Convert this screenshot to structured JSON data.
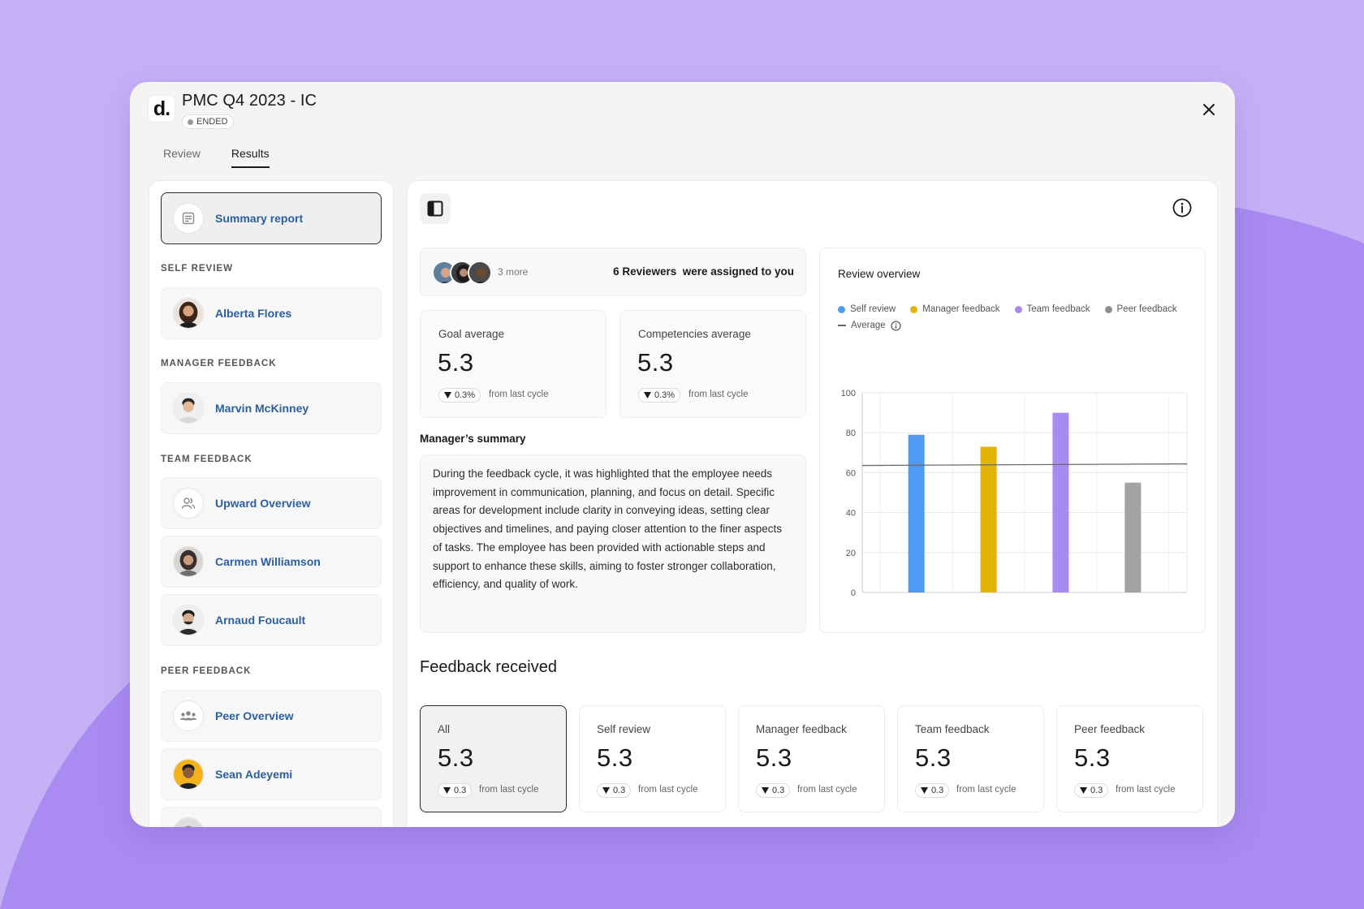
{
  "app": {
    "logo_text": "d.",
    "title": "PMC Q4 2023 - IC",
    "status": "ENDED"
  },
  "tabs": [
    {
      "label": "Review",
      "active": false
    },
    {
      "label": "Results",
      "active": true
    }
  ],
  "sidebar": {
    "summary_label": "Summary report",
    "sections": {
      "self_review": "SELF REVIEW",
      "manager_feedback": "MANAGER FEEDBACK",
      "team_feedback": "TEAM FEEDBACK",
      "peer_feedback": "PEER FEEDBACK"
    },
    "items": {
      "alberta": "Alberta Flores",
      "marvin": "Marvin McKinney",
      "upward": "Upward Overview",
      "carmen": "Carmen Williamson",
      "arnaud": "Arnaud Foucault",
      "peer": "Peer Overview",
      "sean": "Sean Adeyemi"
    }
  },
  "reviewers": {
    "more": "3 more",
    "text": "6 Reviewers  were assigned to you"
  },
  "stats": {
    "goal": {
      "label": "Goal average",
      "value": "5.3",
      "delta": "0.3%",
      "caption": "from last cycle"
    },
    "competencies": {
      "label": "Competencies average",
      "value": "5.3",
      "delta": "0.3%",
      "caption": "from last cycle"
    }
  },
  "manager_summary": {
    "title": "Manager’s summary",
    "body": "During the feedback cycle, it was highlighted that the employee needs improvement in communication, planning, and focus on detail. Specific areas for development include clarity in conveying ideas, setting clear objectives and timelines, and paying closer attention to the finer aspects of tasks. The employee has been provided with actionable steps and support to enhance these skills, aiming to foster stronger collaboration, efficiency, and quality of work."
  },
  "feedback_received": {
    "title": "Feedback received",
    "cards": [
      {
        "label": "All",
        "value": "5.3",
        "delta": "0.3",
        "caption": "from last cycle",
        "active": true
      },
      {
        "label": "Self review",
        "value": "5.3",
        "delta": "0.3",
        "caption": "from last cycle",
        "active": false
      },
      {
        "label": "Manager feedback",
        "value": "5.3",
        "delta": "0.3",
        "caption": "from last cycle",
        "active": false
      },
      {
        "label": "Team feedback",
        "value": "5.3",
        "delta": "0.3",
        "caption": "from last cycle",
        "active": false
      },
      {
        "label": "Peer feedback",
        "value": "5.3",
        "delta": "0.3",
        "caption": "from last cycle",
        "active": false
      }
    ]
  },
  "chart_data": {
    "type": "bar",
    "title": "Review overview",
    "categories": [
      "Self review",
      "Manager feedback",
      "Team feedback",
      "Peer feedback"
    ],
    "values": [
      79,
      73,
      90,
      55
    ],
    "colors": [
      "#4f9af2",
      "#e2b406",
      "#a78bf0",
      "#a3a3a3"
    ],
    "legend": [
      "Self review",
      "Manager feedback",
      "Team feedback",
      "Peer feedback"
    ],
    "average_label": "Average",
    "average_value": 64,
    "ylim": [
      0,
      100
    ],
    "yticks": [
      0,
      20,
      40,
      60,
      80,
      100
    ],
    "grid": true,
    "legend_position": "top-left"
  },
  "colors": {
    "accent_link": "#2b5f9e",
    "background": "#c6b1f7",
    "blob": "#a98bf2"
  },
  "icons": {
    "close": "close-icon",
    "info": "info-icon",
    "panel": "panel-toggle-icon",
    "summary": "document-icon",
    "upward": "people-icon",
    "peer": "group-icon"
  }
}
